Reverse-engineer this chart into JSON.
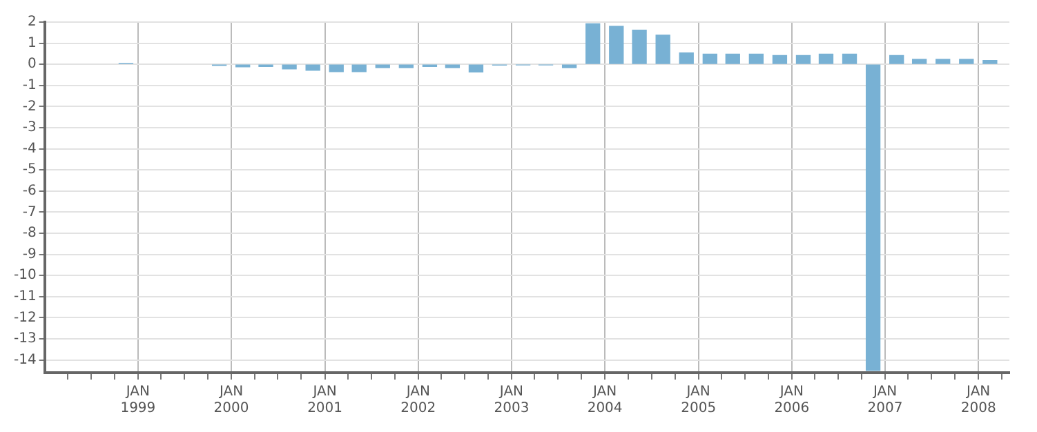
{
  "chart_data": {
    "type": "bar",
    "color": "#78b1d4",
    "x": [
      "1998-11-15",
      "1999-11-15",
      "2000-02-15",
      "2000-05-15",
      "2000-08-15",
      "2000-11-15",
      "2001-02-15",
      "2001-05-15",
      "2001-08-15",
      "2001-11-15",
      "2002-02-15",
      "2002-05-15",
      "2002-08-15",
      "2002-11-15",
      "2003-02-15",
      "2003-05-15",
      "2003-08-15",
      "2003-11-15",
      "2004-02-15",
      "2004-05-15",
      "2004-08-15",
      "2004-11-15",
      "2005-02-15",
      "2005-05-15",
      "2005-08-15",
      "2005-11-15",
      "2006-02-15",
      "2006-05-15",
      "2006-08-15",
      "2006-11-15",
      "2007-02-15",
      "2007-05-15",
      "2007-08-15",
      "2007-11-15",
      "2008-02-15"
    ],
    "values": [
      0.04,
      -0.05,
      -0.12,
      -0.1,
      -0.22,
      -0.28,
      -0.35,
      -0.35,
      -0.16,
      -0.16,
      -0.1,
      -0.16,
      -0.36,
      -0.04,
      -0.03,
      -0.03,
      -0.16,
      1.92,
      1.8,
      1.62,
      1.38,
      0.54,
      0.48,
      0.48,
      0.48,
      0.42,
      0.42,
      0.48,
      0.48,
      -14.5,
      0.42,
      0.24,
      0.24,
      0.24,
      0.18
    ],
    "xlim": [
      "1998-01-01",
      "2008-05-01"
    ],
    "xticks": [
      {
        "value": "1998-04-01",
        "label": null
      },
      {
        "value": "1998-07-01",
        "label": null
      },
      {
        "value": "1998-10-01",
        "label": null
      },
      {
        "value": "1999-01-01",
        "label": "JAN 1999"
      },
      {
        "value": "1999-04-01",
        "label": null
      },
      {
        "value": "1999-07-01",
        "label": null
      },
      {
        "value": "1999-10-01",
        "label": null
      },
      {
        "value": "2000-01-01",
        "label": "JAN 2000"
      },
      {
        "value": "2000-04-01",
        "label": null
      },
      {
        "value": "2000-07-01",
        "label": null
      },
      {
        "value": "2000-10-01",
        "label": null
      },
      {
        "value": "2001-01-01",
        "label": "JAN 2001"
      },
      {
        "value": "2001-04-01",
        "label": null
      },
      {
        "value": "2001-07-01",
        "label": null
      },
      {
        "value": "2001-10-01",
        "label": null
      },
      {
        "value": "2002-01-01",
        "label": "JAN 2002"
      },
      {
        "value": "2002-04-01",
        "label": null
      },
      {
        "value": "2002-07-01",
        "label": null
      },
      {
        "value": "2002-10-01",
        "label": null
      },
      {
        "value": "2003-01-01",
        "label": "JAN 2003"
      },
      {
        "value": "2003-04-01",
        "label": null
      },
      {
        "value": "2003-07-01",
        "label": null
      },
      {
        "value": "2003-10-01",
        "label": null
      },
      {
        "value": "2004-01-01",
        "label": "JAN 2004"
      },
      {
        "value": "2004-04-01",
        "label": null
      },
      {
        "value": "2004-07-01",
        "label": null
      },
      {
        "value": "2004-10-01",
        "label": null
      },
      {
        "value": "2005-01-01",
        "label": "JAN 2005"
      },
      {
        "value": "2005-04-01",
        "label": null
      },
      {
        "value": "2005-07-01",
        "label": null
      },
      {
        "value": "2005-10-01",
        "label": null
      },
      {
        "value": "2006-01-01",
        "label": "JAN 2006"
      },
      {
        "value": "2006-04-01",
        "label": null
      },
      {
        "value": "2006-07-01",
        "label": null
      },
      {
        "value": "2006-10-01",
        "label": null
      },
      {
        "value": "2007-01-01",
        "label": "JAN 2007"
      },
      {
        "value": "2007-04-01",
        "label": null
      },
      {
        "value": "2007-07-01",
        "label": null
      },
      {
        "value": "2007-10-01",
        "label": null
      },
      {
        "value": "2008-01-01",
        "label": "JAN 2008"
      },
      {
        "value": "2008-04-01",
        "label": null
      }
    ],
    "ylim": [
      -14.6,
      2
    ],
    "yticks": [
      -14,
      -13,
      -12,
      -11,
      -10,
      -9,
      -8,
      -7,
      -6,
      -5,
      -4,
      -3,
      -2,
      -1,
      0,
      1,
      2
    ],
    "grid": true
  }
}
